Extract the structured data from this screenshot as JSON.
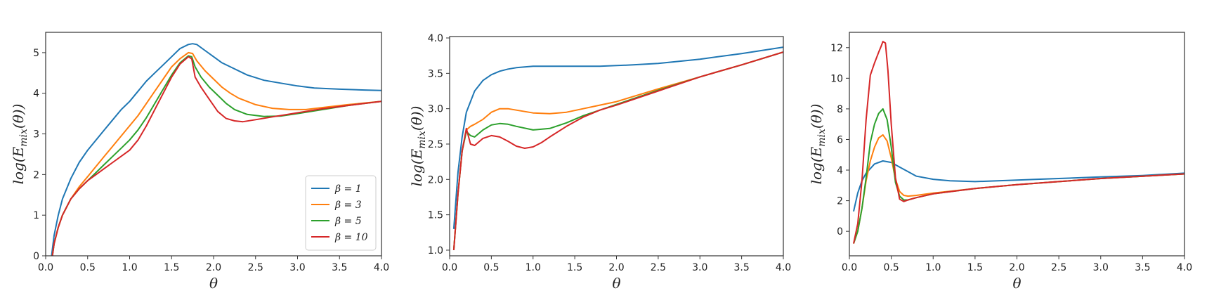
{
  "chart_data": [
    {
      "type": "line",
      "xlabel": "θ",
      "ylabel": "log(E_mix(θ))",
      "xlim": [
        0.0,
        4.0
      ],
      "ylim": [
        0.0,
        5.5
      ],
      "xticks": [
        "0.0",
        "0.5",
        "1.0",
        "1.5",
        "2.0",
        "2.5",
        "3.0",
        "3.5",
        "4.0"
      ],
      "yticks": [
        "0",
        "1",
        "2",
        "3",
        "4",
        "5"
      ],
      "grid": false,
      "legend": {
        "placement": "lower-right",
        "entries": [
          "β = 1",
          "β = 3",
          "β = 5",
          "β = 10"
        ]
      },
      "series": [
        {
          "name": "β = 1",
          "color": "#1f77b4",
          "x": [
            0.07,
            0.1,
            0.15,
            0.2,
            0.3,
            0.4,
            0.5,
            0.6,
            0.7,
            0.8,
            0.9,
            1.0,
            1.1,
            1.2,
            1.3,
            1.4,
            1.5,
            1.6,
            1.7,
            1.75,
            1.8,
            1.9,
            2.0,
            2.1,
            2.2,
            2.4,
            2.6,
            2.8,
            3.0,
            3.2,
            3.5,
            3.8,
            4.0
          ],
          "y": [
            0.0,
            0.5,
            1.0,
            1.4,
            1.9,
            2.3,
            2.6,
            2.85,
            3.1,
            3.35,
            3.6,
            3.8,
            4.05,
            4.3,
            4.5,
            4.7,
            4.9,
            5.1,
            5.2,
            5.22,
            5.2,
            5.05,
            4.9,
            4.75,
            4.65,
            4.45,
            4.32,
            4.25,
            4.18,
            4.13,
            4.1,
            4.08,
            4.07
          ]
        },
        {
          "name": "β = 3",
          "color": "#ff7f0e",
          "x": [
            0.08,
            0.1,
            0.15,
            0.2,
            0.3,
            0.4,
            0.5,
            0.6,
            0.7,
            0.8,
            0.9,
            1.0,
            1.1,
            1.2,
            1.3,
            1.4,
            1.5,
            1.6,
            1.7,
            1.75,
            1.8,
            1.9,
            2.0,
            2.1,
            2.2,
            2.3,
            2.5,
            2.7,
            2.9,
            3.1,
            3.3,
            3.6,
            4.0
          ],
          "y": [
            0.0,
            0.3,
            0.7,
            1.0,
            1.4,
            1.7,
            1.95,
            2.2,
            2.45,
            2.7,
            2.95,
            3.2,
            3.45,
            3.75,
            4.05,
            4.35,
            4.65,
            4.85,
            5.0,
            4.98,
            4.8,
            4.55,
            4.35,
            4.15,
            4.0,
            3.88,
            3.72,
            3.63,
            3.6,
            3.6,
            3.65,
            3.72,
            3.8
          ]
        },
        {
          "name": "β = 5",
          "color": "#2ca02c",
          "x": [
            0.08,
            0.1,
            0.15,
            0.2,
            0.3,
            0.4,
            0.5,
            0.6,
            0.7,
            0.8,
            0.9,
            1.0,
            1.1,
            1.2,
            1.3,
            1.4,
            1.5,
            1.6,
            1.7,
            1.74,
            1.78,
            1.85,
            1.95,
            2.05,
            2.15,
            2.25,
            2.4,
            2.6,
            2.8,
            3.0,
            3.3,
            3.6,
            4.0
          ],
          "y": [
            0.0,
            0.3,
            0.7,
            1.0,
            1.4,
            1.65,
            1.85,
            2.05,
            2.25,
            2.45,
            2.65,
            2.85,
            3.1,
            3.4,
            3.75,
            4.1,
            4.45,
            4.75,
            4.92,
            4.9,
            4.65,
            4.4,
            4.15,
            3.95,
            3.75,
            3.6,
            3.48,
            3.43,
            3.44,
            3.5,
            3.6,
            3.7,
            3.8
          ]
        },
        {
          "name": "β = 10",
          "color": "#d62728",
          "x": [
            0.08,
            0.1,
            0.15,
            0.2,
            0.3,
            0.4,
            0.5,
            0.6,
            0.7,
            0.8,
            0.9,
            1.0,
            1.1,
            1.2,
            1.3,
            1.4,
            1.5,
            1.6,
            1.7,
            1.74,
            1.78,
            1.85,
            1.95,
            2.05,
            2.15,
            2.25,
            2.35,
            2.5,
            2.7,
            3.0,
            3.3,
            3.6,
            4.0
          ],
          "y": [
            0.0,
            0.3,
            0.7,
            1.0,
            1.4,
            1.65,
            1.85,
            2.0,
            2.15,
            2.3,
            2.45,
            2.6,
            2.85,
            3.2,
            3.6,
            4.0,
            4.4,
            4.72,
            4.9,
            4.85,
            4.4,
            4.15,
            3.85,
            3.55,
            3.38,
            3.32,
            3.3,
            3.35,
            3.42,
            3.52,
            3.62,
            3.7,
            3.8
          ]
        }
      ]
    },
    {
      "type": "line",
      "xlabel": "θ",
      "ylabel": "log(E_mix(θ))",
      "xlim": [
        0.0,
        4.0
      ],
      "ylim": [
        0.92,
        4.02
      ],
      "xticks": [
        "0.0",
        "0.5",
        "1.0",
        "1.5",
        "2.0",
        "2.5",
        "3.0",
        "3.5",
        "4.0"
      ],
      "yticks": [
        "1.0",
        "1.5",
        "2.0",
        "2.5",
        "3.0",
        "3.5",
        "4.0"
      ],
      "grid": false,
      "series": [
        {
          "name": "β = 1",
          "color": "#1f77b4",
          "x": [
            0.05,
            0.1,
            0.15,
            0.2,
            0.3,
            0.4,
            0.5,
            0.6,
            0.7,
            0.8,
            1.0,
            1.2,
            1.5,
            1.8,
            2.0,
            2.2,
            2.5,
            3.0,
            3.5,
            4.0
          ],
          "y": [
            1.3,
            2.1,
            2.6,
            2.95,
            3.25,
            3.4,
            3.48,
            3.53,
            3.56,
            3.58,
            3.6,
            3.6,
            3.6,
            3.6,
            3.61,
            3.62,
            3.64,
            3.7,
            3.78,
            3.87
          ]
        },
        {
          "name": "β = 3",
          "color": "#ff7f0e",
          "x": [
            0.05,
            0.1,
            0.15,
            0.2,
            0.25,
            0.3,
            0.4,
            0.5,
            0.6,
            0.7,
            0.8,
            1.0,
            1.2,
            1.4,
            1.6,
            1.8,
            2.0,
            2.5,
            3.0,
            3.5,
            4.0
          ],
          "y": [
            1.0,
            1.8,
            2.4,
            2.7,
            2.75,
            2.78,
            2.85,
            2.95,
            3.0,
            3.0,
            2.98,
            2.94,
            2.93,
            2.95,
            3.0,
            3.05,
            3.1,
            3.28,
            3.45,
            3.62,
            3.8
          ]
        },
        {
          "name": "β = 5",
          "color": "#2ca02c",
          "x": [
            0.05,
            0.1,
            0.15,
            0.2,
            0.25,
            0.3,
            0.4,
            0.5,
            0.6,
            0.7,
            0.8,
            1.0,
            1.2,
            1.4,
            1.6,
            1.8,
            2.0,
            2.5,
            3.0,
            3.5,
            4.0
          ],
          "y": [
            1.0,
            1.8,
            2.4,
            2.68,
            2.62,
            2.6,
            2.7,
            2.77,
            2.79,
            2.78,
            2.75,
            2.7,
            2.72,
            2.8,
            2.9,
            2.98,
            3.06,
            3.26,
            3.45,
            3.62,
            3.8
          ]
        },
        {
          "name": "β = 10",
          "color": "#d62728",
          "x": [
            0.05,
            0.1,
            0.15,
            0.2,
            0.25,
            0.3,
            0.4,
            0.5,
            0.6,
            0.7,
            0.8,
            0.9,
            1.0,
            1.1,
            1.2,
            1.4,
            1.6,
            1.8,
            2.0,
            2.5,
            3.0,
            3.5,
            4.0
          ],
          "y": [
            1.0,
            1.8,
            2.4,
            2.72,
            2.5,
            2.48,
            2.58,
            2.62,
            2.6,
            2.54,
            2.47,
            2.44,
            2.46,
            2.52,
            2.6,
            2.75,
            2.88,
            2.98,
            3.05,
            3.25,
            3.45,
            3.62,
            3.8
          ]
        }
      ]
    },
    {
      "type": "line",
      "xlabel": "θ",
      "ylabel": "log(E_mix(θ))",
      "xlim": [
        0.0,
        4.0
      ],
      "ylim": [
        -1.6,
        13.0
      ],
      "xticks": [
        "0.0",
        "0.5",
        "1.0",
        "1.5",
        "2.0",
        "2.5",
        "3.0",
        "3.5",
        "4.0"
      ],
      "yticks": [
        "0",
        "2",
        "4",
        "6",
        "8",
        "10",
        "12"
      ],
      "grid": false,
      "series": [
        {
          "name": "β = 1",
          "color": "#1f77b4",
          "x": [
            0.05,
            0.1,
            0.15,
            0.2,
            0.3,
            0.4,
            0.5,
            0.6,
            0.7,
            0.8,
            1.0,
            1.2,
            1.5,
            2.0,
            2.5,
            3.0,
            3.5,
            4.0
          ],
          "y": [
            1.3,
            2.5,
            3.3,
            3.8,
            4.4,
            4.6,
            4.5,
            4.2,
            3.9,
            3.6,
            3.4,
            3.3,
            3.25,
            3.35,
            3.45,
            3.55,
            3.65,
            3.8
          ]
        },
        {
          "name": "β = 3",
          "color": "#ff7f0e",
          "x": [
            0.05,
            0.1,
            0.15,
            0.2,
            0.25,
            0.3,
            0.35,
            0.4,
            0.45,
            0.5,
            0.55,
            0.6,
            0.65,
            0.7,
            0.8,
            1.0,
            1.5,
            2.0,
            2.5,
            3.0,
            3.5,
            4.0
          ],
          "y": [
            -0.8,
            0.0,
            1.5,
            3.3,
            4.6,
            5.5,
            6.1,
            6.3,
            5.9,
            4.8,
            3.4,
            2.6,
            2.35,
            2.3,
            2.35,
            2.5,
            2.8,
            3.05,
            3.25,
            3.45,
            3.6,
            3.75
          ]
        },
        {
          "name": "β = 5",
          "color": "#2ca02c",
          "x": [
            0.05,
            0.1,
            0.15,
            0.2,
            0.25,
            0.3,
            0.35,
            0.4,
            0.45,
            0.5,
            0.55,
            0.6,
            0.65,
            0.7,
            0.8,
            1.0,
            1.5,
            2.0,
            2.5,
            3.0,
            3.5,
            4.0
          ],
          "y": [
            -0.8,
            0.0,
            1.5,
            3.5,
            5.8,
            7.0,
            7.7,
            8.0,
            7.3,
            5.5,
            3.2,
            2.3,
            2.05,
            2.05,
            2.2,
            2.45,
            2.8,
            3.05,
            3.25,
            3.45,
            3.6,
            3.75
          ]
        },
        {
          "name": "β = 10",
          "color": "#d62728",
          "x": [
            0.05,
            0.1,
            0.15,
            0.2,
            0.25,
            0.3,
            0.35,
            0.38,
            0.4,
            0.43,
            0.46,
            0.5,
            0.55,
            0.6,
            0.65,
            0.7,
            0.8,
            1.0,
            1.5,
            2.0,
            2.5,
            3.0,
            3.5,
            4.0
          ],
          "y": [
            -0.8,
            0.5,
            3.3,
            7.3,
            10.2,
            11.0,
            11.7,
            12.1,
            12.4,
            12.3,
            10.5,
            7.0,
            3.5,
            2.1,
            1.95,
            2.05,
            2.2,
            2.45,
            2.8,
            3.05,
            3.25,
            3.45,
            3.6,
            3.75
          ]
        }
      ]
    }
  ]
}
